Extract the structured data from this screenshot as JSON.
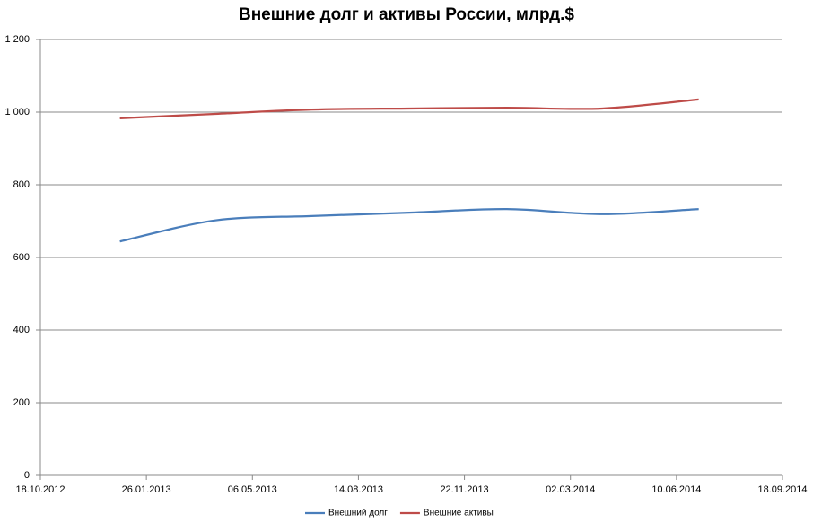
{
  "chart_data": {
    "type": "line",
    "title": "Внешние долг и активы России, млрд.$",
    "x": [
      "01.01.2013",
      "01.04.2013",
      "01.07.2013",
      "01.10.2013",
      "01.01.2014",
      "01.04.2014",
      "01.07.2014"
    ],
    "series": [
      {
        "name": "Внешний долг",
        "color": "#4a7ebb",
        "values": [
          644,
          702,
          714,
          723,
          733,
          719,
          733
        ]
      },
      {
        "name": "Внешние активы",
        "color": "#be4b48",
        "values": [
          983,
          995,
          1007,
          1010,
          1012,
          1010,
          1035
        ]
      }
    ],
    "xlim": [
      "18.10.2012",
      "18.09.2014"
    ],
    "xticks": [
      "18.10.2012",
      "26.01.2013",
      "06.05.2013",
      "14.08.2013",
      "22.11.2013",
      "02.03.2014",
      "10.06.2014",
      "18.09.2014"
    ],
    "ylim": [
      0,
      1200
    ],
    "yticks": [
      0,
      200,
      400,
      600,
      800,
      {
        "value": 1000,
        "label": "1 000"
      },
      {
        "value": 1200,
        "label": "1 200"
      }
    ],
    "grid": true,
    "legend": "bottom"
  }
}
